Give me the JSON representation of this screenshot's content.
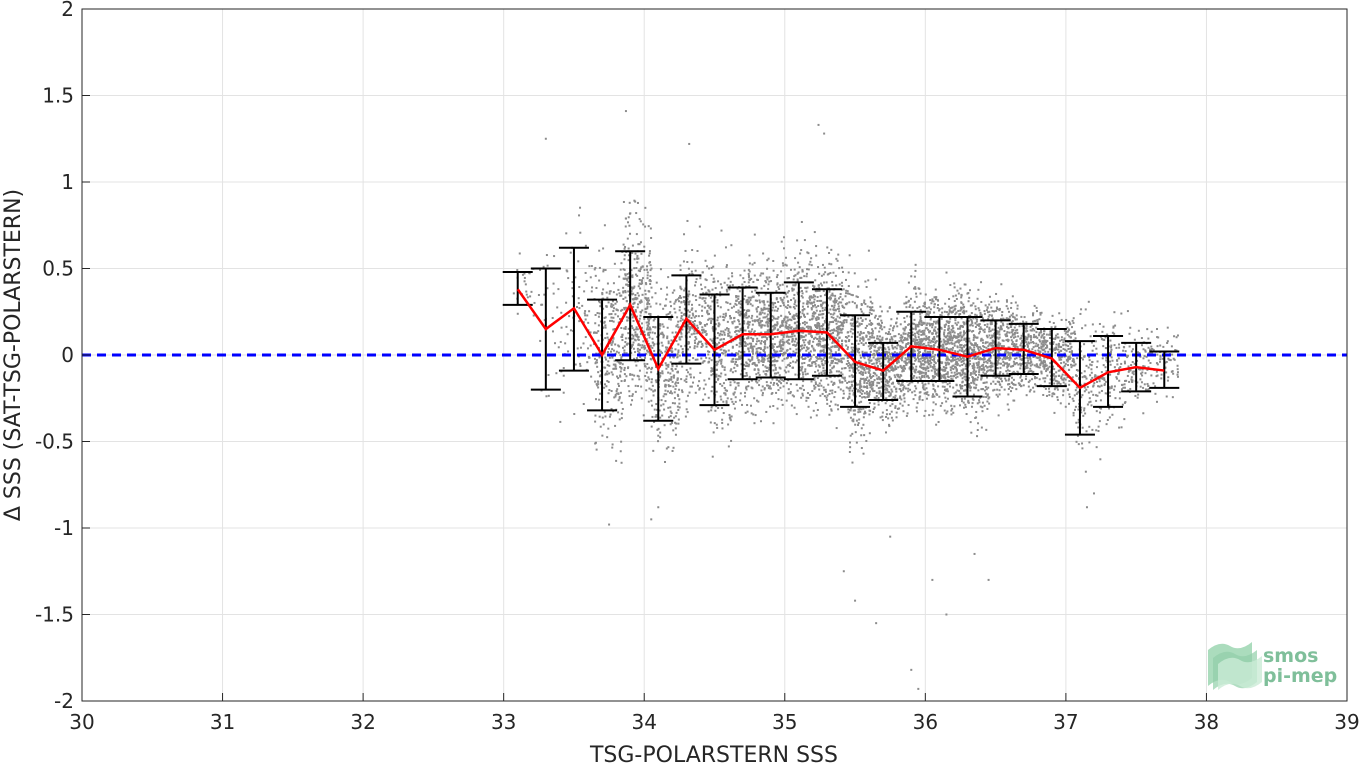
{
  "chart_data": {
    "type": "scatter",
    "xlabel": "TSG-POLARSTERN SSS",
    "ylabel": "Δ SSS (SAT-TSG-POLARSTERN)",
    "xlim": [
      30,
      39
    ],
    "ylim": [
      -2,
      2
    ],
    "x_ticks": [
      "30",
      "31",
      "32",
      "33",
      "34",
      "35",
      "36",
      "37",
      "38",
      "39"
    ],
    "y_ticks": [
      "2",
      "1.5",
      "1",
      "0.5",
      "0",
      "-0.5",
      "-1",
      "-1.5",
      "-2"
    ],
    "grid": true,
    "colors": {
      "scatter": "#8c8c8c",
      "mean_line": "#ff0000",
      "error_bars": "#000000",
      "zero_line": "#0000ff",
      "logo": "#7fbf9a"
    },
    "zero_line": {
      "y": 0,
      "style": "dashed"
    },
    "binned_stats": [
      {
        "x": 33.1,
        "mean": 0.38,
        "low": 0.29,
        "high": 0.48
      },
      {
        "x": 33.3,
        "mean": 0.15,
        "low": -0.2,
        "high": 0.5
      },
      {
        "x": 33.5,
        "mean": 0.27,
        "low": -0.09,
        "high": 0.62
      },
      {
        "x": 33.7,
        "mean": 0.0,
        "low": -0.32,
        "high": 0.32
      },
      {
        "x": 33.9,
        "mean": 0.29,
        "low": -0.03,
        "high": 0.6
      },
      {
        "x": 34.1,
        "mean": -0.08,
        "low": -0.38,
        "high": 0.22
      },
      {
        "x": 34.3,
        "mean": 0.21,
        "low": -0.05,
        "high": 0.46
      },
      {
        "x": 34.5,
        "mean": 0.03,
        "low": -0.29,
        "high": 0.35
      },
      {
        "x": 34.7,
        "mean": 0.12,
        "low": -0.14,
        "high": 0.39
      },
      {
        "x": 34.9,
        "mean": 0.12,
        "low": -0.13,
        "high": 0.36
      },
      {
        "x": 35.1,
        "mean": 0.14,
        "low": -0.14,
        "high": 0.42
      },
      {
        "x": 35.3,
        "mean": 0.13,
        "low": -0.12,
        "high": 0.38
      },
      {
        "x": 35.5,
        "mean": -0.04,
        "low": -0.3,
        "high": 0.23
      },
      {
        "x": 35.7,
        "mean": -0.09,
        "low": -0.26,
        "high": 0.07
      },
      {
        "x": 35.9,
        "mean": 0.05,
        "low": -0.15,
        "high": 0.25
      },
      {
        "x": 36.1,
        "mean": 0.03,
        "low": -0.15,
        "high": 0.22
      },
      {
        "x": 36.3,
        "mean": -0.01,
        "low": -0.24,
        "high": 0.22
      },
      {
        "x": 36.5,
        "mean": 0.04,
        "low": -0.12,
        "high": 0.2
      },
      {
        "x": 36.7,
        "mean": 0.03,
        "low": -0.11,
        "high": 0.18
      },
      {
        "x": 36.9,
        "mean": -0.02,
        "low": -0.18,
        "high": 0.15
      },
      {
        "x": 37.1,
        "mean": -0.19,
        "low": -0.46,
        "high": 0.08
      },
      {
        "x": 37.3,
        "mean": -0.1,
        "low": -0.3,
        "high": 0.11
      },
      {
        "x": 37.5,
        "mean": -0.07,
        "low": -0.21,
        "high": 0.07
      },
      {
        "x": 37.7,
        "mean": -0.09,
        "low": -0.19,
        "high": 0.02
      }
    ],
    "scatter_bins": [
      {
        "x_min": 33.05,
        "x_max": 33.25,
        "center": 0.38,
        "spread": 0.12,
        "count": 25
      },
      {
        "x_min": 33.25,
        "x_max": 33.45,
        "center": 0.15,
        "spread": 0.32,
        "count": 40
      },
      {
        "x_min": 33.45,
        "x_max": 33.65,
        "center": 0.25,
        "spread": 0.34,
        "count": 70
      },
      {
        "x_min": 33.65,
        "x_max": 33.85,
        "center": 0.05,
        "spread": 0.35,
        "count": 260
      },
      {
        "x_min": 33.85,
        "x_max": 34.05,
        "center": 0.25,
        "spread": 0.34,
        "count": 380
      },
      {
        "x_min": 34.05,
        "x_max": 34.25,
        "center": -0.05,
        "spread": 0.32,
        "count": 280
      },
      {
        "x_min": 34.25,
        "x_max": 34.45,
        "center": 0.18,
        "spread": 0.27,
        "count": 260
      },
      {
        "x_min": 34.45,
        "x_max": 34.65,
        "center": 0.04,
        "spread": 0.32,
        "count": 300
      },
      {
        "x_min": 34.65,
        "x_max": 34.85,
        "center": 0.12,
        "spread": 0.27,
        "count": 380
      },
      {
        "x_min": 34.85,
        "x_max": 35.05,
        "center": 0.12,
        "spread": 0.26,
        "count": 400
      },
      {
        "x_min": 35.05,
        "x_max": 35.25,
        "center": 0.14,
        "spread": 0.28,
        "count": 420
      },
      {
        "x_min": 35.25,
        "x_max": 35.45,
        "center": 0.12,
        "spread": 0.27,
        "count": 420
      },
      {
        "x_min": 35.45,
        "x_max": 35.65,
        "center": -0.04,
        "spread": 0.28,
        "count": 430
      },
      {
        "x_min": 35.65,
        "x_max": 35.85,
        "center": -0.07,
        "spread": 0.2,
        "count": 400
      },
      {
        "x_min": 35.85,
        "x_max": 36.05,
        "center": 0.05,
        "spread": 0.22,
        "count": 440
      },
      {
        "x_min": 36.05,
        "x_max": 36.25,
        "center": 0.03,
        "spread": 0.22,
        "count": 460
      },
      {
        "x_min": 36.25,
        "x_max": 36.45,
        "center": 0.0,
        "spread": 0.24,
        "count": 430
      },
      {
        "x_min": 36.45,
        "x_max": 36.65,
        "center": 0.04,
        "spread": 0.18,
        "count": 360
      },
      {
        "x_min": 36.65,
        "x_max": 36.85,
        "center": 0.03,
        "spread": 0.16,
        "count": 300
      },
      {
        "x_min": 36.85,
        "x_max": 37.05,
        "center": -0.02,
        "spread": 0.17,
        "count": 240
      },
      {
        "x_min": 37.05,
        "x_max": 37.25,
        "center": -0.15,
        "spread": 0.26,
        "count": 160
      },
      {
        "x_min": 37.25,
        "x_max": 37.45,
        "center": -0.08,
        "spread": 0.2,
        "count": 130
      },
      {
        "x_min": 37.45,
        "x_max": 37.65,
        "center": -0.06,
        "spread": 0.14,
        "count": 100
      },
      {
        "x_min": 37.65,
        "x_max": 37.8,
        "center": -0.05,
        "spread": 0.12,
        "count": 50
      }
    ],
    "outlier_points": [
      [
        33.87,
        1.41
      ],
      [
        35.24,
        1.33
      ],
      [
        35.28,
        1.28
      ],
      [
        34.32,
        1.22
      ],
      [
        33.3,
        1.25
      ],
      [
        35.9,
        -1.82
      ],
      [
        35.95,
        -1.93
      ],
      [
        35.65,
        -1.55
      ],
      [
        35.5,
        -1.42
      ],
      [
        35.42,
        -1.25
      ],
      [
        36.05,
        -1.3
      ],
      [
        36.15,
        -1.5
      ],
      [
        36.35,
        -1.15
      ],
      [
        36.45,
        -1.3
      ],
      [
        35.75,
        -1.05
      ],
      [
        34.05,
        -0.95
      ],
      [
        34.1,
        -0.88
      ],
      [
        33.75,
        -0.98
      ],
      [
        37.15,
        -0.88
      ],
      [
        37.2,
        -0.8
      ]
    ],
    "logo": {
      "line1": "smos",
      "line2": "pi-mep"
    }
  }
}
